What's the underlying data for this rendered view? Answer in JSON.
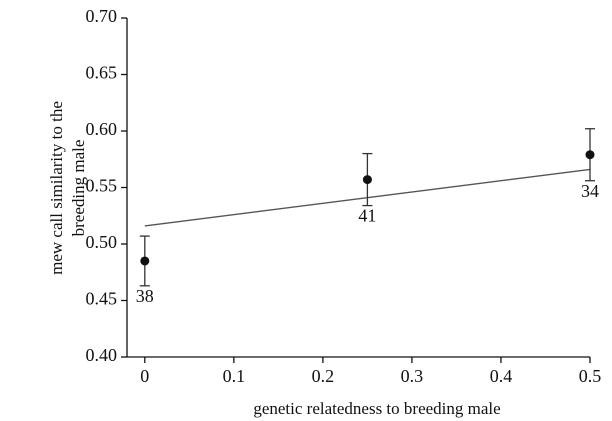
{
  "chart_data": {
    "type": "errorbar-scatter",
    "x_label": "genetic relatedness to breeding male",
    "y_label": [
      "mew call similarity to the",
      "breeding male"
    ],
    "x": [
      0,
      0.25,
      0.5
    ],
    "values": [
      0.485,
      0.557,
      0.579
    ],
    "errors": [
      0.022,
      0.023,
      0.023
    ],
    "counts": [
      38,
      41,
      34
    ],
    "trend": {
      "x": [
        0,
        0.5
      ],
      "y": [
        0.516,
        0.566
      ]
    },
    "color": "#111111",
    "xlim": [
      -0.02,
      0.5
    ],
    "xticks": [
      0,
      0.1,
      0.2,
      0.3,
      0.4,
      0.5
    ],
    "ylim": [
      0.4,
      0.7
    ],
    "yticks": [
      {
        "value": 0.4,
        "label": "0.40"
      },
      {
        "value": 0.45,
        "label": "0.45"
      },
      {
        "value": 0.5,
        "label": "0.50"
      },
      {
        "value": 0.55,
        "label": "0.55"
      },
      {
        "value": 0.6,
        "label": "0.60"
      },
      {
        "value": 0.65,
        "label": "0.65"
      },
      {
        "value": 0.7,
        "label": "0.70"
      }
    ]
  }
}
